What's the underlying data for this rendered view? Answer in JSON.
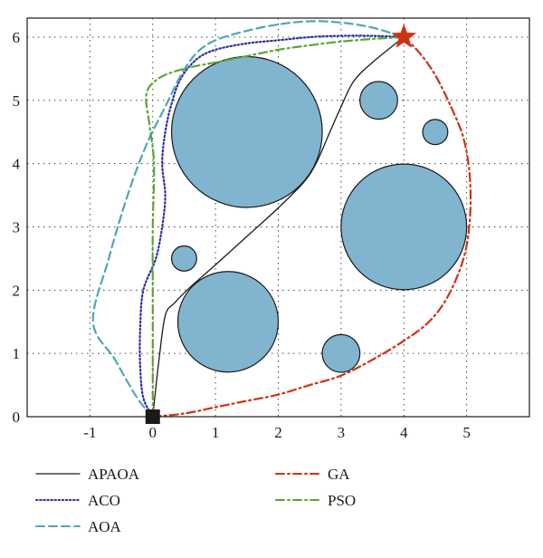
{
  "chart_data": {
    "type": "scatter",
    "title": "",
    "xlabel": "",
    "ylabel": "",
    "xlim": [
      -2,
      6
    ],
    "ylim": [
      0,
      6.3
    ],
    "xticks": [
      -1,
      0,
      1,
      2,
      3,
      4,
      5
    ],
    "xtick_labels": [
      "-1",
      "0",
      "1",
      "2",
      "3",
      "4",
      "5"
    ],
    "yticks": [
      0,
      1,
      2,
      3,
      4,
      5,
      6
    ],
    "ytick_labels": [
      "0",
      "1",
      "2",
      "3",
      "4",
      "5",
      "6"
    ],
    "grid": true,
    "legend_position": "bottom",
    "start": {
      "x": 0,
      "y": 0,
      "marker": "square",
      "color": "#1a1a1a"
    },
    "goal": {
      "x": 4,
      "y": 6,
      "marker": "star",
      "color": "#cc3314"
    },
    "obstacles": [
      {
        "cx": 1.5,
        "cy": 4.5,
        "r": 1.2
      },
      {
        "cx": 3.6,
        "cy": 5.0,
        "r": 0.3
      },
      {
        "cx": 4.5,
        "cy": 4.5,
        "r": 0.2
      },
      {
        "cx": 4.0,
        "cy": 3.0,
        "r": 1.0
      },
      {
        "cx": 0.5,
        "cy": 2.5,
        "r": 0.2
      },
      {
        "cx": 1.2,
        "cy": 1.5,
        "r": 0.8
      },
      {
        "cx": 3.0,
        "cy": 1.0,
        "r": 0.3
      }
    ],
    "obstacle_color": "#80b4cf",
    "series": [
      {
        "name": "APAOA",
        "color": "#1a1a1a",
        "dash": "solid",
        "points": [
          [
            0,
            0
          ],
          [
            0.1,
            0.9
          ],
          [
            0.2,
            1.6
          ],
          [
            0.35,
            1.8
          ],
          [
            0.6,
            2.05
          ],
          [
            1.0,
            2.4
          ],
          [
            1.5,
            2.85
          ],
          [
            2.0,
            3.3
          ],
          [
            2.4,
            3.7
          ],
          [
            2.6,
            4.0
          ],
          [
            2.8,
            4.45
          ],
          [
            3.0,
            4.9
          ],
          [
            3.2,
            5.3
          ],
          [
            3.5,
            5.6
          ],
          [
            4,
            6
          ]
        ]
      },
      {
        "name": "ACO",
        "color": "#2e2ea6",
        "dash": "dotted",
        "points": [
          [
            0,
            0
          ],
          [
            -0.15,
            0.3
          ],
          [
            -0.2,
            0.8
          ],
          [
            -0.2,
            1.4
          ],
          [
            -0.15,
            2.0
          ],
          [
            0.05,
            2.5
          ],
          [
            0.15,
            3.0
          ],
          [
            0.2,
            3.5
          ],
          [
            0.15,
            4.0
          ],
          [
            0.2,
            4.5
          ],
          [
            0.3,
            4.95
          ],
          [
            0.45,
            5.35
          ],
          [
            0.7,
            5.65
          ],
          [
            1.0,
            5.8
          ],
          [
            1.5,
            5.9
          ],
          [
            2.0,
            5.95
          ],
          [
            2.5,
            6.0
          ],
          [
            3.0,
            6.02
          ],
          [
            3.5,
            6.02
          ],
          [
            4,
            6
          ]
        ]
      },
      {
        "name": "AOA",
        "color": "#4fa6b6",
        "dash": "dashed",
        "points": [
          [
            0,
            0
          ],
          [
            -0.25,
            0.3
          ],
          [
            -0.6,
            0.9
          ],
          [
            -0.95,
            1.5
          ],
          [
            -0.7,
            2.5
          ],
          [
            -0.4,
            3.5
          ],
          [
            -0.1,
            4.3
          ],
          [
            0.2,
            4.9
          ],
          [
            0.45,
            5.4
          ],
          [
            0.7,
            5.75
          ],
          [
            1.0,
            5.95
          ],
          [
            1.5,
            6.1
          ],
          [
            2.0,
            6.2
          ],
          [
            2.5,
            6.25
          ],
          [
            3.0,
            6.23
          ],
          [
            3.5,
            6.15
          ],
          [
            4,
            6
          ]
        ]
      },
      {
        "name": "GA",
        "color": "#cc3314",
        "dash": "dashdot",
        "points": [
          [
            0,
            0
          ],
          [
            0.5,
            0.05
          ],
          [
            1.0,
            0.15
          ],
          [
            1.5,
            0.25
          ],
          [
            2.0,
            0.35
          ],
          [
            2.5,
            0.5
          ],
          [
            3.0,
            0.65
          ],
          [
            3.5,
            0.9
          ],
          [
            4.0,
            1.2
          ],
          [
            4.4,
            1.5
          ],
          [
            4.7,
            1.9
          ],
          [
            4.95,
            2.5
          ],
          [
            5.05,
            3.1
          ],
          [
            5.05,
            3.8
          ],
          [
            4.95,
            4.4
          ],
          [
            4.75,
            4.9
          ],
          [
            4.5,
            5.4
          ],
          [
            4.25,
            5.75
          ],
          [
            4,
            6
          ]
        ]
      },
      {
        "name": "PSO",
        "color": "#5aa632",
        "dash": "dashdot",
        "points": [
          [
            0,
            0
          ],
          [
            0.0,
            1.0
          ],
          [
            0.0,
            2.0
          ],
          [
            0.0,
            3.0
          ],
          [
            0.02,
            4.0
          ],
          [
            -0.05,
            4.6
          ],
          [
            -0.1,
            5.1
          ],
          [
            0.1,
            5.35
          ],
          [
            0.5,
            5.5
          ],
          [
            1.0,
            5.6
          ],
          [
            1.5,
            5.7
          ],
          [
            2.0,
            5.8
          ],
          [
            2.5,
            5.87
          ],
          [
            3.0,
            5.93
          ],
          [
            3.5,
            5.97
          ],
          [
            4,
            6
          ]
        ]
      }
    ]
  },
  "legend": {
    "left": [
      "APAOA",
      "ACO",
      "AOA"
    ],
    "right": [
      "GA",
      "PSO"
    ]
  }
}
